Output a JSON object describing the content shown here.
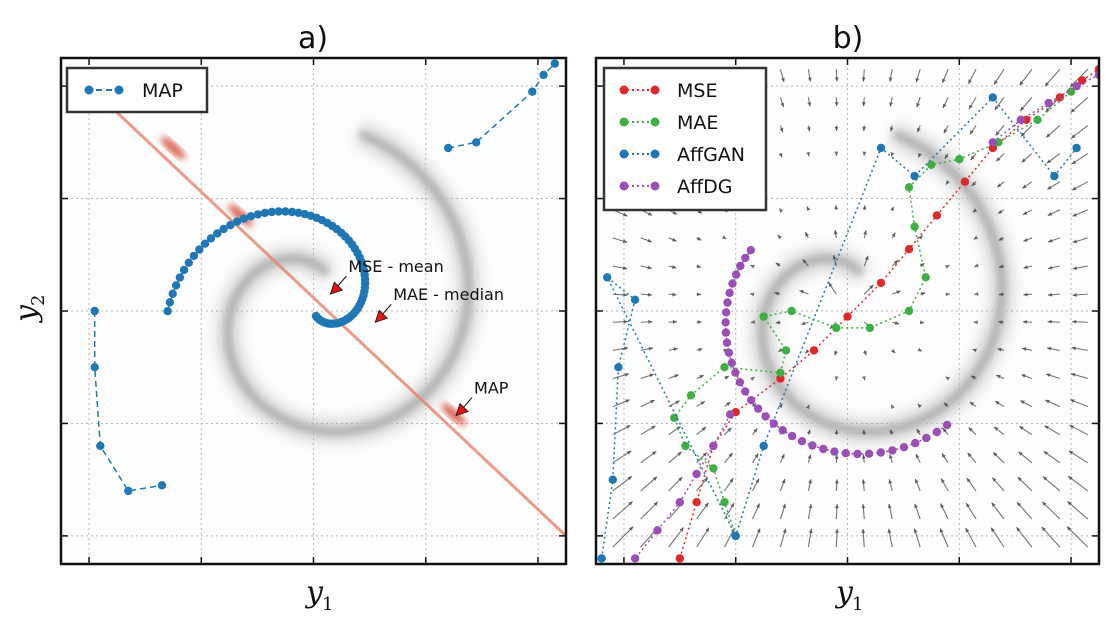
{
  "chart_data": [
    {
      "panel": "a",
      "type": "scatter",
      "title": "a)",
      "xlabel": "y",
      "xlabel_sub": "1",
      "ylabel": "y",
      "ylabel_sub": "2",
      "xlim": [
        -2.25,
        2.25
      ],
      "ylim": [
        -2.25,
        2.25
      ],
      "grid": true,
      "legend_position": "top-left",
      "background": "spiral density (grey) with red diagonal ridge",
      "series": [
        {
          "name": "MAP",
          "color": "#1f77b4",
          "style": "dashed line with dots",
          "spiral": {
            "r0": 1.3,
            "r1": 0.05,
            "theta0": 3.14,
            "theta1": 7.4
          }
        }
      ],
      "annotations": [
        {
          "text": "MSE - mean",
          "x": 0.15,
          "y": 0.15,
          "arrow_color": "#e01515"
        },
        {
          "text": "MAE - median",
          "x": 0.55,
          "y": -0.1,
          "arrow_color": "#e01515"
        },
        {
          "text": "MAP",
          "x": 1.27,
          "y": -0.93,
          "arrow_color": "#e01515"
        }
      ],
      "diagonal_line": {
        "color": "#e8826b",
        "from": [
          -2.0,
          2.0
        ],
        "to": [
          2.25,
          -2.0
        ]
      }
    },
    {
      "panel": "b",
      "type": "scatter",
      "title": "b)",
      "xlabel": "y",
      "xlabel_sub": "1",
      "xlim": [
        -2.25,
        2.25
      ],
      "ylim": [
        -2.25,
        2.25
      ],
      "grid": true,
      "legend_position": "top-left",
      "background": "spiral density (grey) with grey quiver vector field",
      "series": [
        {
          "name": "MSE",
          "color": "#e0282a",
          "style": "dotted line with dots",
          "points": [
            [
              -1.5,
              -2.2
            ],
            [
              -1.35,
              -1.7
            ],
            [
              -1.2,
              -1.2
            ],
            [
              -1.0,
              -0.9
            ],
            [
              -0.6,
              -0.6
            ],
            [
              -0.3,
              -0.35
            ],
            [
              0.0,
              -0.05
            ],
            [
              0.3,
              0.25
            ],
            [
              0.55,
              0.55
            ],
            [
              0.8,
              0.85
            ],
            [
              1.05,
              1.15
            ],
            [
              1.3,
              1.45
            ],
            [
              1.6,
              1.7
            ],
            [
              1.9,
              1.9
            ],
            [
              2.1,
              2.05
            ],
            [
              2.25,
              2.15
            ]
          ]
        },
        {
          "name": "MAE",
          "color": "#3fae44",
          "style": "dotted line with dots",
          "points": [
            [
              -1.0,
              -2.0
            ],
            [
              -1.1,
              -1.7
            ],
            [
              -1.2,
              -1.4
            ],
            [
              -1.45,
              -1.2
            ],
            [
              -1.55,
              -0.95
            ],
            [
              -1.4,
              -0.75
            ],
            [
              -1.1,
              -0.5
            ],
            [
              -0.6,
              -0.55
            ],
            [
              -0.55,
              -0.35
            ],
            [
              -0.75,
              -0.05
            ],
            [
              -0.5,
              0.0
            ],
            [
              -0.1,
              -0.15
            ],
            [
              0.2,
              -0.15
            ],
            [
              0.55,
              0.0
            ],
            [
              0.7,
              0.3
            ],
            [
              0.6,
              0.75
            ],
            [
              0.55,
              1.1
            ],
            [
              0.75,
              1.3
            ],
            [
              1.0,
              1.35
            ],
            [
              1.35,
              1.5
            ],
            [
              1.7,
              1.7
            ],
            [
              2.0,
              1.95
            ]
          ]
        },
        {
          "name": "AffGAN",
          "color": "#1f77b4",
          "style": "dotted line with dots",
          "points": [
            [
              -2.2,
              -2.2
            ],
            [
              -2.1,
              -1.5
            ],
            [
              -2.05,
              -0.5
            ],
            [
              -1.9,
              0.1
            ],
            [
              -2.15,
              0.3
            ],
            [
              -1.0,
              -2.0
            ],
            [
              -0.75,
              -1.2
            ],
            [
              0.3,
              1.45
            ],
            [
              0.6,
              1.2
            ],
            [
              1.3,
              1.9
            ],
            [
              1.85,
              1.2
            ],
            [
              2.05,
              1.45
            ]
          ]
        },
        {
          "name": "AffDG",
          "color": "#9b4fb5",
          "style": "dotted line with dots",
          "spiral": {
            "r0": 1.35,
            "r1": 1.02,
            "theta0": 0.85,
            "theta1": 3.7
          },
          "tail": [
            [
              -1.05,
              -0.92
            ],
            [
              -1.2,
              -1.2
            ],
            [
              -1.35,
              -1.45
            ],
            [
              -1.5,
              -1.7
            ],
            [
              -1.7,
              -1.95
            ],
            [
              -1.9,
              -2.2
            ],
            [
              1.3,
              1.5
            ],
            [
              1.55,
              1.7
            ],
            [
              1.8,
              1.85
            ],
            [
              2.05,
              2.0
            ],
            [
              2.25,
              2.1
            ]
          ]
        }
      ]
    }
  ]
}
